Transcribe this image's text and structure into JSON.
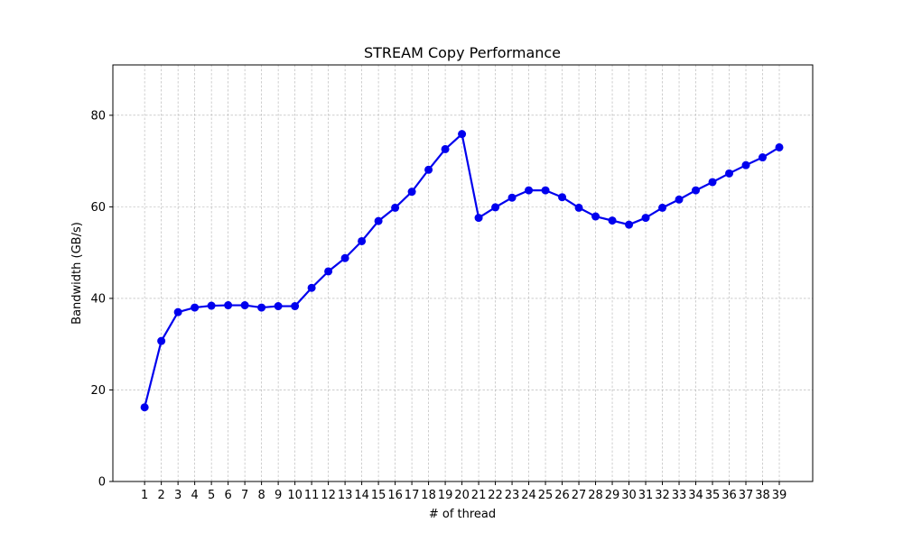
{
  "chart_data": {
    "type": "line",
    "title": "STREAM Copy Performance",
    "xlabel": "# of thread",
    "ylabel": "Bandwidth (GB/s)",
    "x": [
      1,
      2,
      3,
      4,
      5,
      6,
      7,
      8,
      9,
      10,
      11,
      12,
      13,
      14,
      15,
      16,
      17,
      18,
      19,
      20,
      21,
      22,
      23,
      24,
      25,
      26,
      27,
      28,
      29,
      30,
      31,
      32,
      33,
      34,
      35,
      36,
      37,
      38,
      39
    ],
    "x_tick_labels": [
      "1",
      "2",
      "3",
      "4",
      "5",
      "6",
      "7",
      "8",
      "9",
      "10",
      "11",
      "12",
      "13",
      "14",
      "15",
      "16",
      "17",
      "18",
      "19",
      "20",
      "21",
      "22",
      "23",
      "24",
      "25",
      "26",
      "27",
      "28",
      "29",
      "30",
      "31",
      "32",
      "33",
      "34",
      "35",
      "36",
      "37",
      "38",
      "39"
    ],
    "series": [
      {
        "name": "Copy",
        "color": "#0000ee",
        "marker": "circle",
        "values": [
          16.2,
          30.7,
          37.0,
          38.0,
          38.4,
          38.5,
          38.5,
          38.0,
          38.3,
          38.3,
          42.3,
          45.9,
          48.8,
          52.5,
          56.9,
          59.8,
          63.3,
          68.1,
          72.6,
          75.9,
          57.6,
          59.9,
          62.0,
          63.6,
          63.6,
          62.1,
          59.8,
          57.9,
          57.0,
          56.1,
          57.6,
          59.8,
          61.6,
          63.6,
          65.4,
          67.3,
          69.1,
          70.8,
          73.0
        ]
      }
    ],
    "xlim": [
      -0.9,
      41.0
    ],
    "ylim": [
      0,
      91
    ],
    "y_ticks": [
      0,
      20,
      40,
      60,
      80
    ],
    "y_tick_labels": [
      "0",
      "20",
      "40",
      "60",
      "80"
    ],
    "grid": true,
    "legend": "none"
  }
}
